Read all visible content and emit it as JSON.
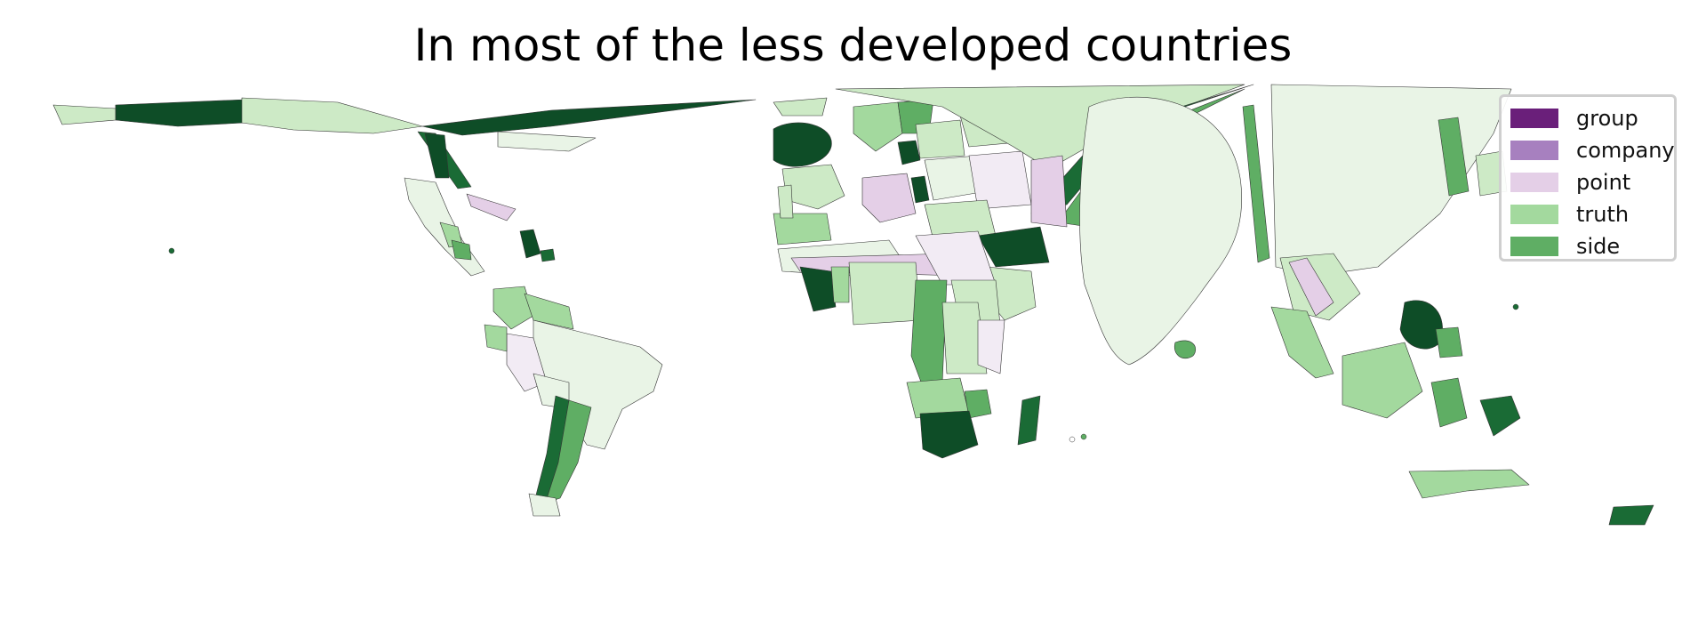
{
  "title": "In most of the less developed countries",
  "legend": {
    "items": [
      {
        "label": "group",
        "color": "#6a1f7a"
      },
      {
        "label": "company",
        "color": "#a780bf"
      },
      {
        "label": "point",
        "color": "#e4cfe7"
      },
      {
        "label": "truth",
        "color": "#a3d99e"
      },
      {
        "label": "side",
        "color": "#5fae64"
      }
    ]
  },
  "palette": {
    "lightest_green": "#e9f4e6",
    "light_green": "#cdeac6",
    "mid_green": "#a3d99e",
    "green": "#5fae64",
    "dark_green": "#1a6b35",
    "darkest_green": "#0e4d27",
    "lightest_purple": "#f2ebf4",
    "light_purple": "#e4cfe7",
    "border": "#333333"
  }
}
